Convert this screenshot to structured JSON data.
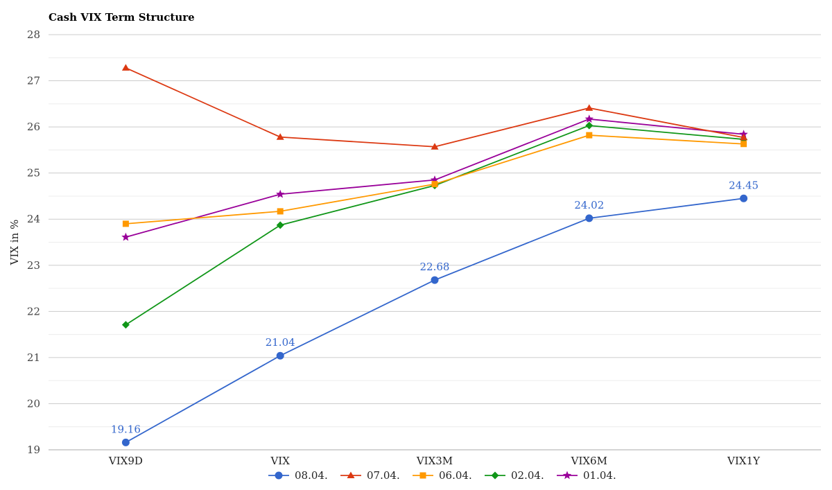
{
  "chart_data": {
    "type": "line",
    "title": "Cash VIX Term Structure",
    "xlabel": "",
    "ylabel": "VIX in %",
    "ylim": [
      19,
      28
    ],
    "yticks": [
      19,
      20,
      21,
      22,
      23,
      24,
      25,
      26,
      27,
      28
    ],
    "categories": [
      "VIX9D",
      "VIX",
      "VIX3M",
      "VIX6M",
      "VIX1Y"
    ],
    "grid": true,
    "legend_position": "bottom",
    "series": [
      {
        "name": "08.04.",
        "color": "#3366cc",
        "marker": "circle",
        "values": [
          19.16,
          21.04,
          22.68,
          24.02,
          24.45
        ],
        "labels": [
          "19.16",
          "21.04",
          "22.68",
          "24.02",
          "24.45"
        ]
      },
      {
        "name": "07.04.",
        "color": "#dc3912",
        "marker": "triangle",
        "values": [
          27.28,
          25.78,
          25.57,
          26.41,
          25.77
        ]
      },
      {
        "name": "06.04.",
        "color": "#ff9900",
        "marker": "square",
        "values": [
          23.9,
          24.17,
          24.76,
          25.82,
          25.63
        ]
      },
      {
        "name": "02.04.",
        "color": "#109618",
        "marker": "diamond",
        "values": [
          21.71,
          23.87,
          24.73,
          26.03,
          25.73
        ]
      },
      {
        "name": "01.04.",
        "color": "#990099",
        "marker": "star",
        "values": [
          23.61,
          24.54,
          24.85,
          26.17,
          25.84
        ]
      }
    ]
  }
}
